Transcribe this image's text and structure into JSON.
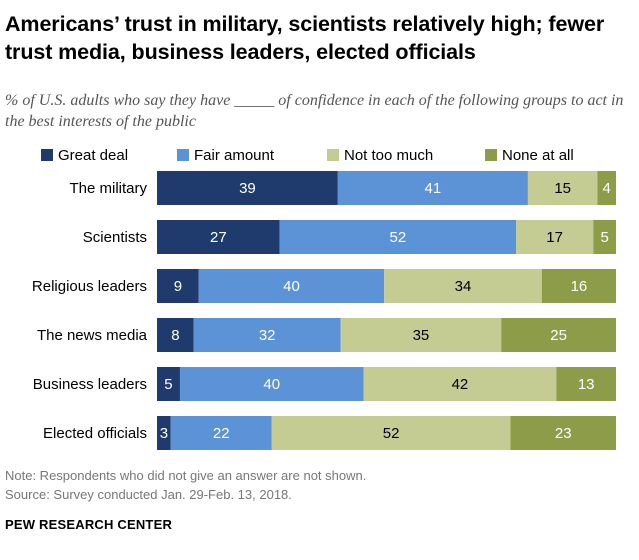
{
  "title": "Americans’ trust in military, scientists relatively high; fewer trust media, business leaders, elected officials",
  "subtitle": "% of U.S. adults who say they have _____ of confidence in each of the following groups to act in the best interests of the public",
  "notes": {
    "note": "Note: Respondents who did not give an answer are not shown.",
    "source": "Source: Survey conducted Jan. 29-Feb. 13, 2018."
  },
  "brand": "PEW RESEARCH CENTER",
  "chart_data": {
    "type": "bar",
    "orientation": "horizontal",
    "stacked": true,
    "title": "Americans’ trust in military, scientists relatively high; fewer trust media, business leaders, elected officials",
    "legend_position": "top",
    "grid": false,
    "categories": [
      "The military",
      "Scientists",
      "Religious leaders",
      "The news media",
      "Business leaders",
      "Elected officials"
    ],
    "series": [
      {
        "name": "Great deal",
        "color": "#1f3b6e",
        "values": [
          39,
          27,
          9,
          8,
          5,
          3
        ]
      },
      {
        "name": "Fair amount",
        "color": "#5b93d6",
        "values": [
          41,
          52,
          40,
          32,
          40,
          22
        ]
      },
      {
        "name": "Not too much",
        "color": "#c4cc93",
        "values": [
          15,
          17,
          34,
          35,
          42,
          52
        ]
      },
      {
        "name": "None at all",
        "color": "#8d9c48",
        "values": [
          4,
          5,
          16,
          25,
          13,
          23
        ]
      }
    ],
    "label_colors": [
      "#ffffff",
      "#ffffff",
      "#000000",
      "#ffffff"
    ]
  }
}
